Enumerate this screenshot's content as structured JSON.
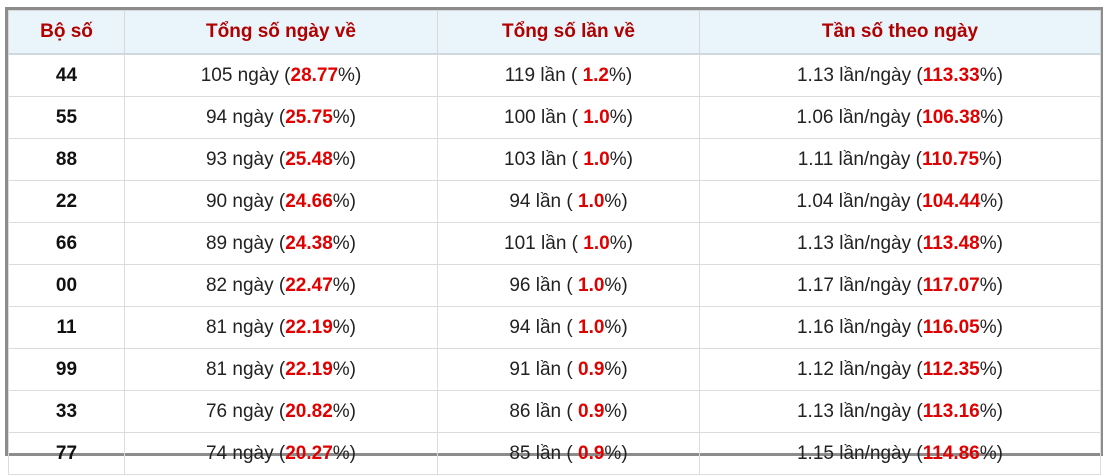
{
  "table": {
    "header": [
      "Bộ số",
      "Tổng số ngày về",
      "Tổng số lần về",
      "Tần số theo ngày"
    ],
    "rows": [
      {
        "bo_so": "44",
        "ngay": [
          "105 ngày (",
          "28.77",
          "%)"
        ],
        "lan": [
          "119 lần ( ",
          "1.2",
          "%)"
        ],
        "tan_so": [
          "1.13 lần/ngày (",
          "113.33",
          "%)"
        ]
      },
      {
        "bo_so": "55",
        "ngay": [
          "94 ngày (",
          "25.75",
          "%)"
        ],
        "lan": [
          "100 lần ( ",
          "1.0",
          "%)"
        ],
        "tan_so": [
          "1.06 lần/ngày (",
          "106.38",
          "%)"
        ]
      },
      {
        "bo_so": "88",
        "ngay": [
          "93 ngày (",
          "25.48",
          "%)"
        ],
        "lan": [
          "103 lần ( ",
          "1.0",
          "%)"
        ],
        "tan_so": [
          "1.11 lần/ngày (",
          "110.75",
          "%)"
        ]
      },
      {
        "bo_so": "22",
        "ngay": [
          "90 ngày (",
          "24.66",
          "%)"
        ],
        "lan": [
          "94 lần ( ",
          "1.0",
          "%)"
        ],
        "tan_so": [
          "1.04 lần/ngày (",
          "104.44",
          "%)"
        ]
      },
      {
        "bo_so": "66",
        "ngay": [
          "89 ngày (",
          "24.38",
          "%)"
        ],
        "lan": [
          "101 lần ( ",
          "1.0",
          "%)"
        ],
        "tan_so": [
          "1.13 lần/ngày (",
          "113.48",
          "%)"
        ]
      },
      {
        "bo_so": "00",
        "ngay": [
          "82 ngày (",
          "22.47",
          "%)"
        ],
        "lan": [
          "96 lần ( ",
          "1.0",
          "%)"
        ],
        "tan_so": [
          "1.17 lần/ngày (",
          "117.07",
          "%)"
        ]
      },
      {
        "bo_so": "11",
        "ngay": [
          "81 ngày (",
          "22.19",
          "%)"
        ],
        "lan": [
          "94 lần ( ",
          "1.0",
          "%)"
        ],
        "tan_so": [
          "1.16 lần/ngày (",
          "116.05",
          "%)"
        ]
      },
      {
        "bo_so": "99",
        "ngay": [
          "81 ngày (",
          "22.19",
          "%)"
        ],
        "lan": [
          "91 lần ( ",
          "0.9",
          "%)"
        ],
        "tan_so": [
          "1.12 lần/ngày (",
          "112.35",
          "%)"
        ]
      },
      {
        "bo_so": "33",
        "ngay": [
          "76 ngày (",
          "20.82",
          "%)"
        ],
        "lan": [
          "86 lần ( ",
          "0.9",
          "%)"
        ],
        "tan_so": [
          "1.13 lần/ngày (",
          "113.16",
          "%)"
        ]
      },
      {
        "bo_so": "77",
        "ngay": [
          "74 ngày (",
          "20.27",
          "%)"
        ],
        "lan": [
          "85 lần ( ",
          "0.9",
          "%)"
        ],
        "tan_so": [
          "1.15 lần/ngày (",
          "114.86",
          "%)"
        ]
      }
    ]
  }
}
